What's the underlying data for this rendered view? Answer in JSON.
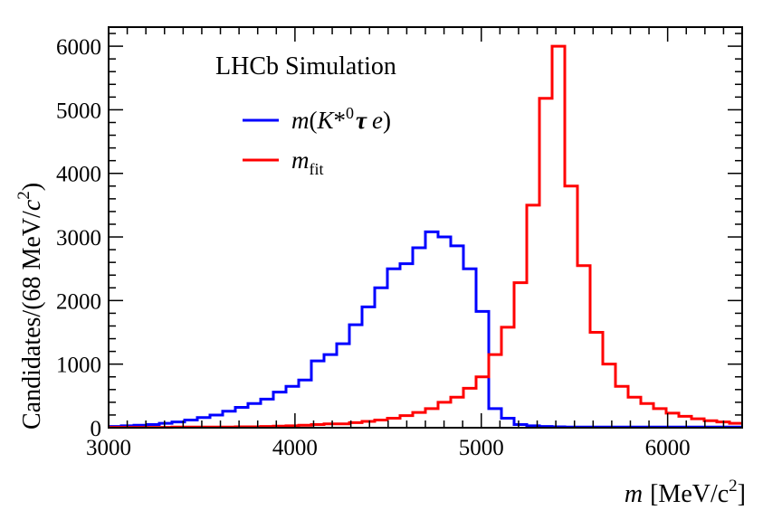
{
  "chart_data": {
    "type": "histogram",
    "annotation": "LHCb Simulation",
    "xlabel": {
      "var": "m",
      "unit": "[MeV/c",
      "unit_sup": "2",
      "unit_close": "]"
    },
    "ylabel": {
      "text": "Candidates/(68 MeV/",
      "c": "c",
      "sup": "2",
      "close": ")"
    },
    "xlim": [
      3000,
      6400
    ],
    "ylim": [
      0,
      6300
    ],
    "xticks": [
      "3000",
      "4000",
      "5000",
      "6000"
    ],
    "yticks": [
      "0",
      "1000",
      "2000",
      "3000",
      "4000",
      "5000",
      "6000"
    ],
    "legend_position": "top-left",
    "bin_width": 68,
    "bin_edges_start": 3000,
    "series": [
      {
        "name": "m(K*0τ e)",
        "legend": {
          "m": "m",
          "open": "(",
          "K": "K",
          "star": "*",
          "zero": "0",
          "tau": "τ",
          "e": "e",
          "close": ")"
        },
        "color": "#0000ff",
        "values": [
          20,
          30,
          40,
          50,
          70,
          90,
          120,
          160,
          200,
          260,
          320,
          380,
          450,
          560,
          650,
          750,
          1050,
          1150,
          1320,
          1620,
          1900,
          2200,
          2500,
          2580,
          2830,
          3080,
          3000,
          2860,
          2500,
          1830,
          300,
          150,
          50,
          30,
          20,
          15,
          10,
          10,
          10,
          10,
          10,
          10,
          10,
          10,
          10,
          10,
          10,
          10,
          10,
          10
        ]
      },
      {
        "name": "m_fit",
        "legend": {
          "m": "m",
          "sub": "fit"
        },
        "color": "#ff0000",
        "values": [
          5,
          5,
          5,
          5,
          5,
          10,
          10,
          10,
          10,
          10,
          15,
          15,
          20,
          25,
          30,
          40,
          50,
          60,
          60,
          80,
          100,
          120,
          150,
          190,
          240,
          300,
          400,
          480,
          620,
          800,
          1150,
          1580,
          2280,
          3500,
          5180,
          6000,
          3800,
          2550,
          1500,
          1000,
          650,
          480,
          380,
          300,
          230,
          180,
          140,
          110,
          90,
          70
        ]
      }
    ]
  }
}
